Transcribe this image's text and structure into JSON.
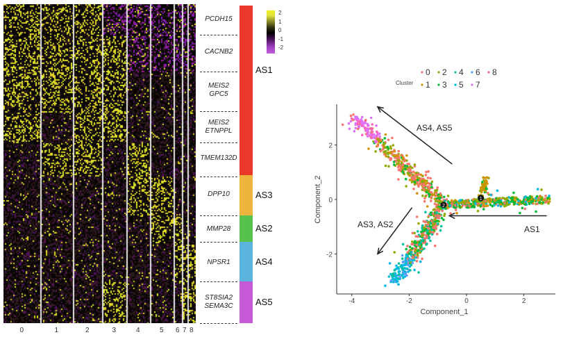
{
  "chart_data": [
    {
      "type": "heatmap",
      "columns": [
        "0",
        "1",
        "2",
        "3",
        "4",
        "5",
        "6",
        "7",
        "8"
      ],
      "gene_labels": [
        {
          "lines": [
            "PCDH15"
          ]
        },
        {
          "lines": [
            "CACNB2"
          ]
        },
        {
          "lines": [
            "MEIS2",
            "GPC5"
          ]
        },
        {
          "lines": [
            "MEIS2",
            "ETNPPL"
          ]
        },
        {
          "lines": [
            "TMEM132D"
          ]
        },
        {
          "lines": [
            "DPP10"
          ]
        },
        {
          "lines": [
            "MMP28"
          ]
        },
        {
          "lines": [
            "NPSR1"
          ]
        },
        {
          "lines": [
            "ST8SIA2",
            "SEMA3C"
          ]
        }
      ],
      "groups": [
        {
          "label": "AS1",
          "color": "#e8392a"
        },
        {
          "label": "AS3",
          "color": "#eeb43e"
        },
        {
          "label": "AS2",
          "color": "#56c24d"
        },
        {
          "label": "AS4",
          "color": "#5ab4dc"
        },
        {
          "label": "AS5",
          "color": "#c65ad6"
        }
      ],
      "color_scale": {
        "ticks": [
          "2",
          "1",
          "0",
          "-1",
          "-2"
        ],
        "colors": [
          "#f0f020",
          "#000000",
          "#c060e0"
        ]
      }
    },
    {
      "type": "scatter",
      "xlabel": "Component_1",
      "ylabel": "Component_2",
      "xlim": [
        -4.3,
        3.0
      ],
      "ylim": [
        -3.4,
        3.5
      ],
      "xticks": [
        "-4",
        "-2",
        "0",
        "2"
      ],
      "yticks": [
        "2",
        "0",
        "-2"
      ],
      "grid": false,
      "legend": {
        "title": "Cluster",
        "position": "top",
        "entries": [
          {
            "label": "0",
            "color": "#F8766D"
          },
          {
            "label": "2",
            "color": "#93AA00"
          },
          {
            "label": "4",
            "color": "#00C19F"
          },
          {
            "label": "6",
            "color": "#619CFF"
          },
          {
            "label": "8",
            "color": "#FF61C3"
          },
          {
            "label": "1",
            "color": "#D39200"
          },
          {
            "label": "3",
            "color": "#00BA38"
          },
          {
            "label": "5",
            "color": "#00B9E3"
          },
          {
            "label": "7",
            "color": "#DB72FB"
          }
        ]
      },
      "branch_points": [
        {
          "label": "1",
          "x": 0.5,
          "y": 0.05
        },
        {
          "label": "2",
          "x": -0.8,
          "y": -0.2
        }
      ],
      "annotations": [
        {
          "text": "AS4, AS5",
          "arrow_from": [
            -0.5,
            1.3
          ],
          "arrow_to": [
            -3.1,
            3.4
          ]
        },
        {
          "text": "AS3, AS2",
          "arrow_from": [
            -1.9,
            -0.3
          ],
          "arrow_to": [
            -3.1,
            -2.0
          ]
        },
        {
          "text": "AS1",
          "arrow_from": [
            2.8,
            -0.6
          ],
          "arrow_to": [
            -0.6,
            -0.6
          ]
        }
      ]
    }
  ]
}
